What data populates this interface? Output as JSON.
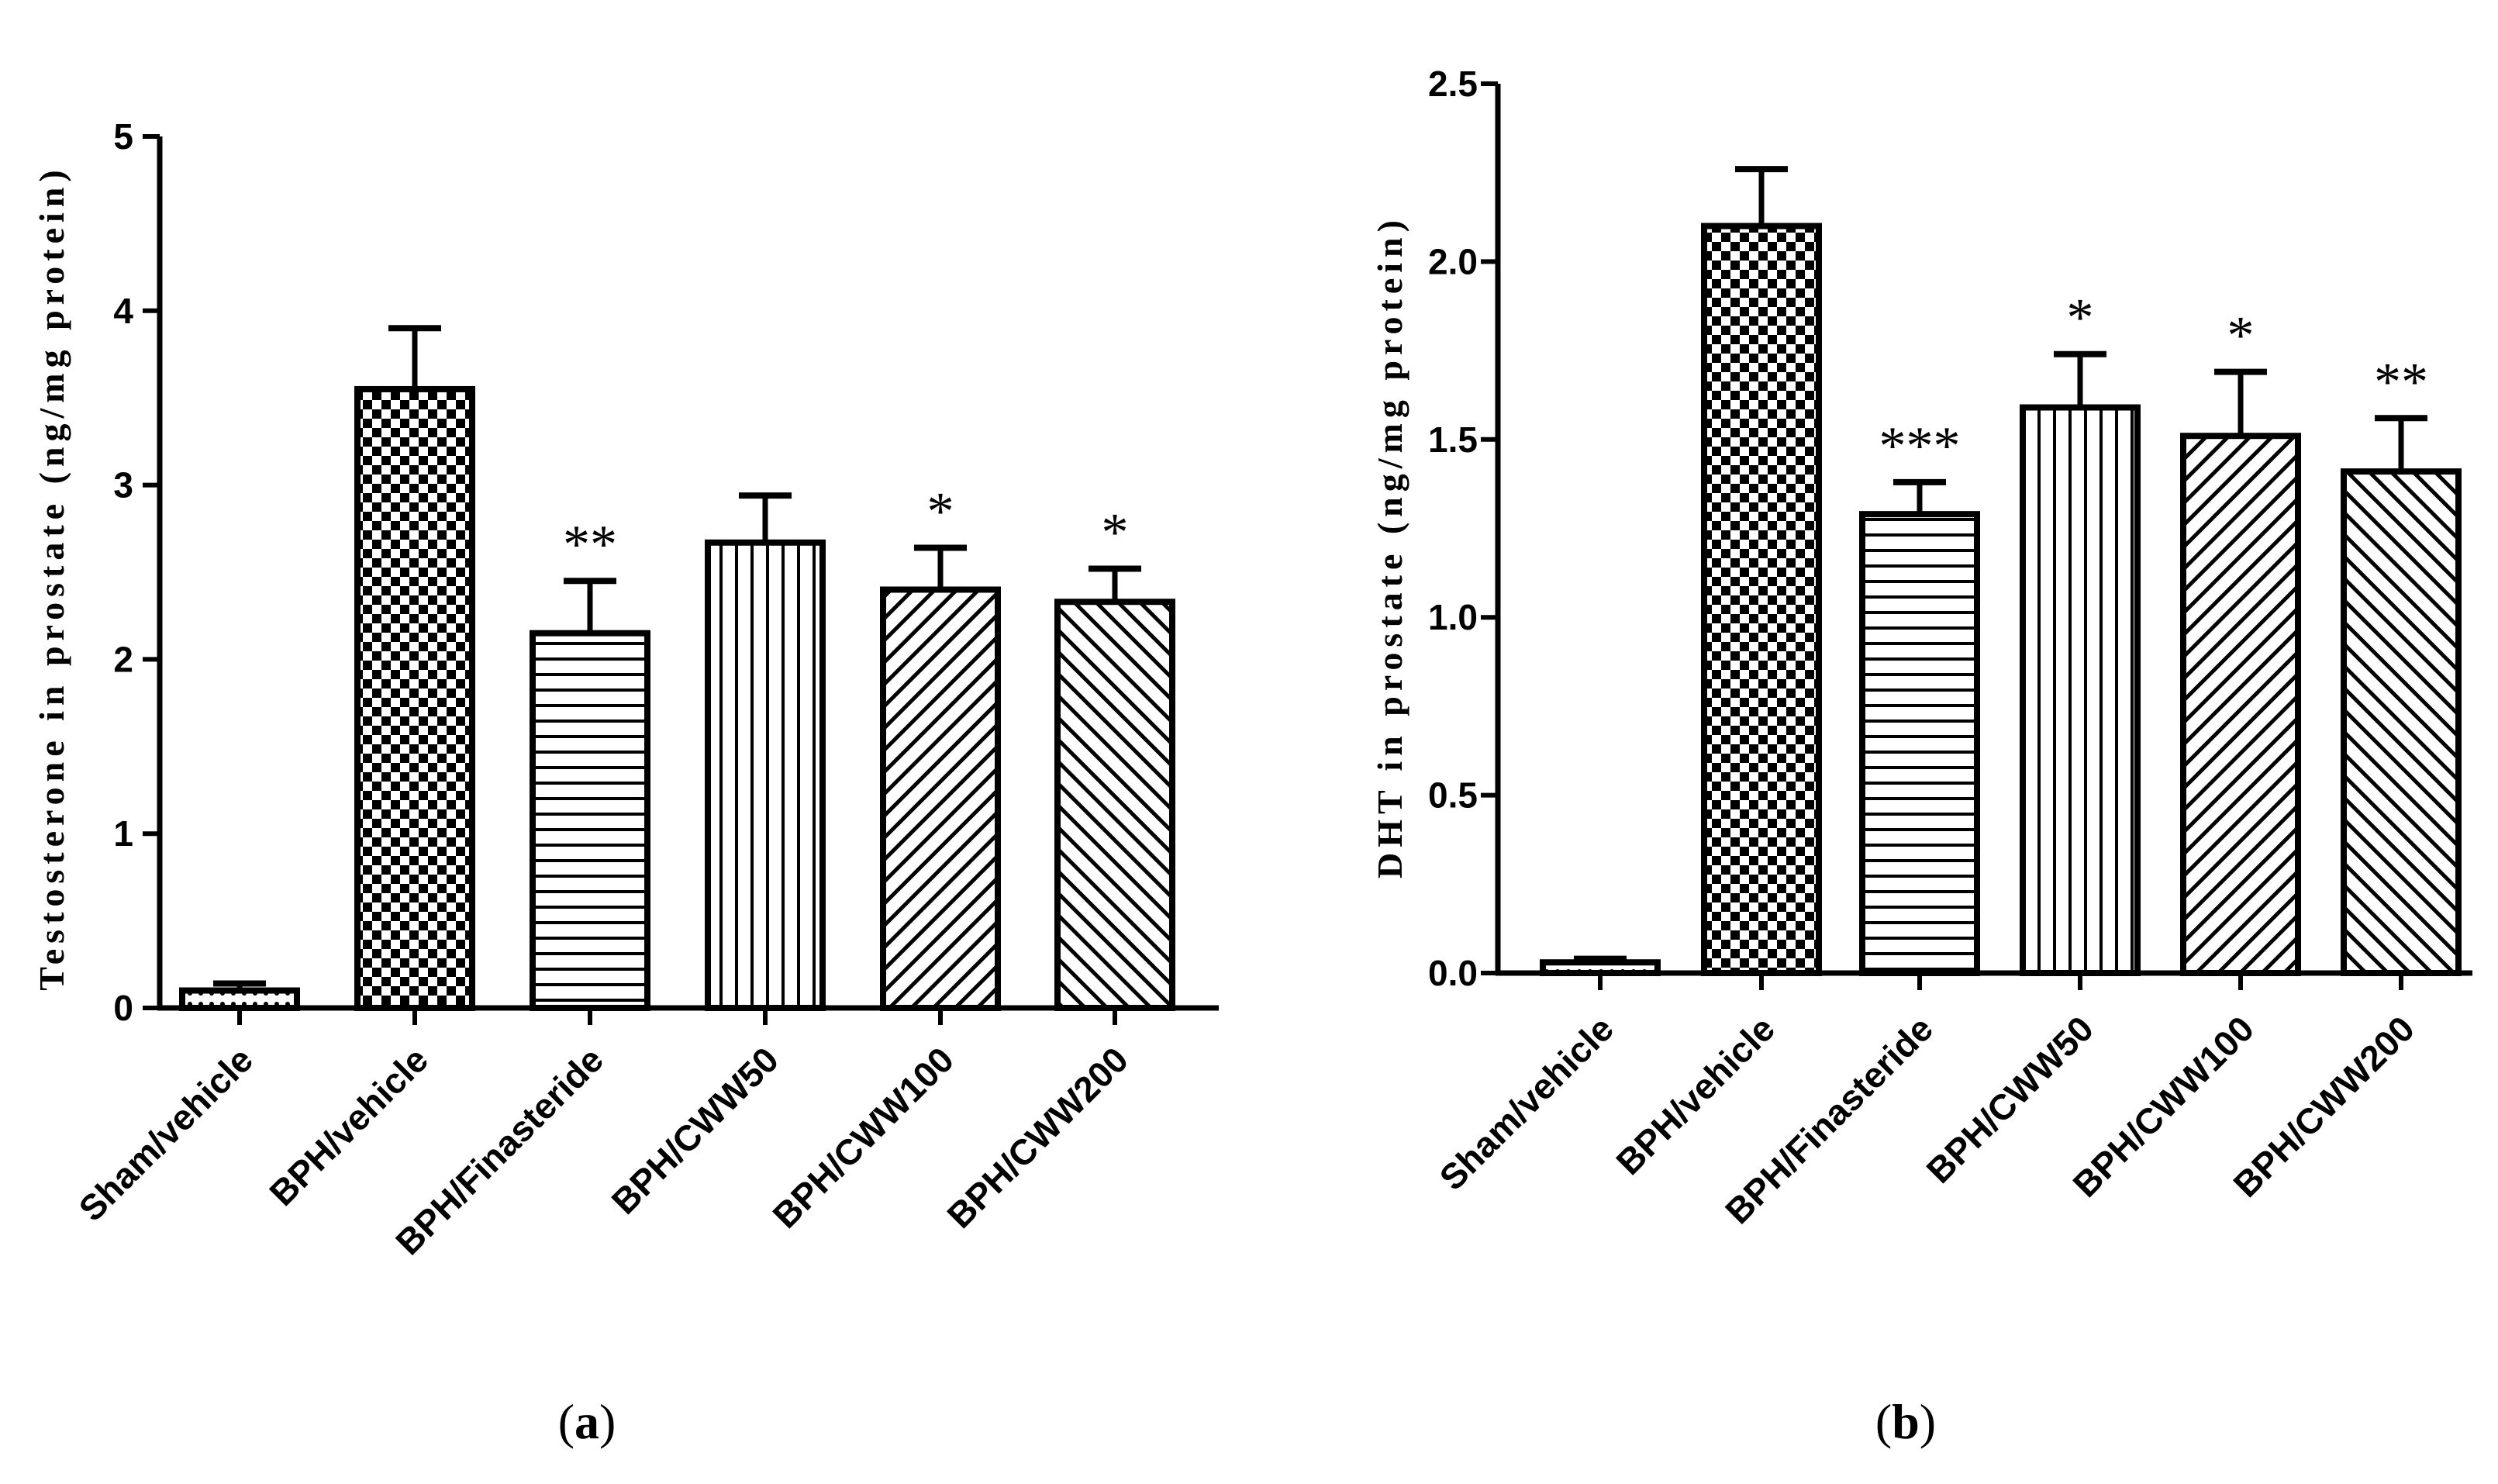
{
  "chart_data": [
    {
      "panel": "(a)",
      "panel_letter": "a",
      "type": "bar",
      "ylabel": "Testosterone in prostate (ng/mg protein)",
      "ylim": [
        0,
        5
      ],
      "yticks": [
        0,
        1,
        2,
        3,
        4,
        5
      ],
      "ytick_labels": [
        "0",
        "1",
        "2",
        "3",
        "4",
        "5"
      ],
      "categories": [
        "Sham/vehicle",
        "BPH/vehicle",
        "BPH/Finasteride",
        "BPH/CWW50",
        "BPH/CWW100",
        "BPH/CWW200"
      ],
      "values": [
        0.1,
        3.55,
        2.15,
        2.67,
        2.4,
        2.33
      ],
      "errors": [
        0.04,
        0.35,
        0.3,
        0.27,
        0.24,
        0.19
      ],
      "patterns": [
        "dots",
        "checker",
        "hlines",
        "vlines",
        "diag-right",
        "diag-left"
      ],
      "significance": [
        "",
        "",
        "**",
        "",
        "*",
        "*"
      ]
    },
    {
      "panel": "(b)",
      "panel_letter": "b",
      "type": "bar",
      "ylabel": "DHT in prostate (ng/mg protein)",
      "ylim": [
        0,
        2.5
      ],
      "yticks": [
        0,
        0.5,
        1,
        1.5,
        2,
        2.5
      ],
      "ytick_labels": [
        "0.0",
        "0.5",
        "1.0",
        "1.5",
        "2.0",
        "2.5"
      ],
      "categories": [
        "Sham/vehicle",
        "BPH/vehicle",
        "BPH/Finasteride",
        "BPH/CWW50",
        "BPH/CWW100",
        "BPH/CWW200"
      ],
      "values": [
        0.03,
        2.1,
        1.29,
        1.59,
        1.51,
        1.41
      ],
      "errors": [
        0.01,
        0.16,
        0.09,
        0.15,
        0.18,
        0.15
      ],
      "patterns": [
        "dots",
        "checker",
        "hlines",
        "vlines",
        "diag-right",
        "diag-left"
      ],
      "significance": [
        "",
        "",
        "***",
        "*",
        "*",
        "**"
      ]
    }
  ]
}
